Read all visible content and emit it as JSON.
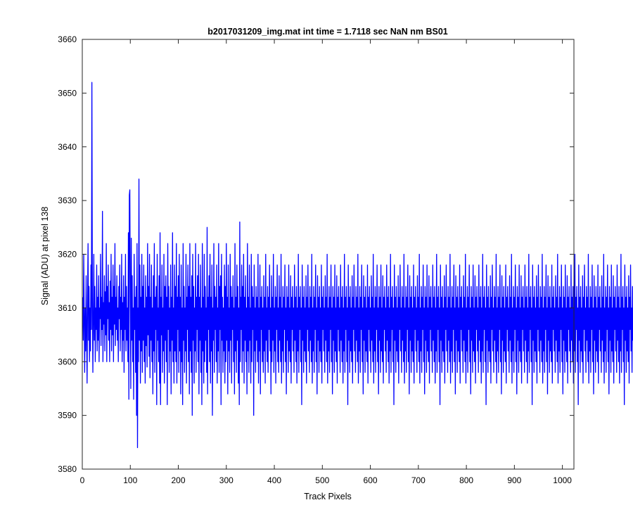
{
  "chart_data": {
    "type": "line",
    "title": "b2017031209_img.mat int time = 1.7118 sec  NaN nm BS01",
    "xlabel": "Track Pixels",
    "ylabel": "Signal (ADU) at pixel 138",
    "xlim": [
      0,
      1024
    ],
    "ylim": [
      3580,
      3660
    ],
    "xticks": [
      0,
      100,
      200,
      300,
      400,
      500,
      600,
      700,
      800,
      900,
      1000
    ],
    "yticks": [
      3580,
      3590,
      3600,
      3610,
      3620,
      3630,
      3640,
      3650,
      3660
    ],
    "grid": false,
    "legend": "none",
    "series_color": "#0000ff",
    "series": [
      {
        "x_start": 1,
        "x_step": 1,
        "values": [
          3612,
          3604,
          3620,
          3608,
          3598,
          3610,
          3602,
          3616,
          3606,
          3596,
          3612,
          3622,
          3604,
          3614,
          3600,
          3610,
          3602,
          3618,
          3606,
          3652,
          3612,
          3598,
          3608,
          3620,
          3604,
          3614,
          3600,
          3610,
          3606,
          3618,
          3602,
          3612,
          3604,
          3616,
          3600,
          3610,
          3608,
          3620,
          3603,
          3612,
          3606,
          3628,
          3600,
          3611,
          3607,
          3616,
          3602,
          3613,
          3605,
          3622,
          3600,
          3614,
          3608,
          3618,
          3604,
          3611,
          3600,
          3615,
          3606,
          3620,
          3602,
          3612,
          3605,
          3618,
          3600,
          3614,
          3607,
          3622,
          3603,
          3612,
          3606,
          3616,
          3604,
          3610,
          3600,
          3614,
          3608,
          3618,
          3602,
          3612,
          3606,
          3620,
          3600,
          3611,
          3604,
          3616,
          3598,
          3612,
          3606,
          3620,
          3602,
          3614,
          3604,
          3610,
          3600,
          3624,
          3593,
          3631,
          3632,
          3612,
          3595,
          3623,
          3604,
          3616,
          3600,
          3610,
          3593,
          3620,
          3606,
          3612,
          3598,
          3614,
          3590,
          3622,
          3584,
          3610,
          3600,
          3634,
          3604,
          3618,
          3596,
          3612,
          3602,
          3620,
          3598,
          3614,
          3604,
          3618,
          3600,
          3610,
          3596,
          3616,
          3603,
          3612,
          3599,
          3622,
          3605,
          3614,
          3601,
          3620,
          3597,
          3612,
          3604,
          3618,
          3600,
          3610,
          3594,
          3616,
          3602,
          3622,
          3598,
          3612,
          3606,
          3614,
          3592,
          3620,
          3604,
          3610,
          3600,
          3616,
          3596,
          3624,
          3592,
          3612,
          3605,
          3618,
          3598,
          3610,
          3602,
          3620,
          3596,
          3614,
          3604,
          3616,
          3600,
          3612,
          3592,
          3622,
          3606,
          3614,
          3598,
          3610,
          3602,
          3618,
          3594,
          3612,
          3604,
          3624,
          3600,
          3610,
          3596,
          3618,
          3602,
          3614,
          3600,
          3622,
          3596,
          3612,
          3606,
          3616,
          3598,
          3620,
          3602,
          3612,
          3594,
          3618,
          3600,
          3610,
          3592,
          3622,
          3604,
          3614,
          3598,
          3610,
          3602,
          3620,
          3596,
          3612,
          3606,
          3618,
          3600,
          3614,
          3594,
          3622,
          3602,
          3612,
          3598,
          3616,
          3590,
          3620,
          3604,
          3614,
          3596,
          3610,
          3602,
          3622,
          3598,
          3612,
          3606,
          3616,
          3600,
          3620,
          3594,
          3612,
          3604,
          3618,
          3598,
          3610,
          3592,
          3622,
          3602,
          3612,
          3596,
          3620,
          3600,
          3614,
          3604,
          3610,
          3598,
          3625,
          3594,
          3612,
          3606,
          3616,
          3600,
          3620,
          3596,
          3612,
          3602,
          3618,
          3590,
          3610,
          3604,
          3622,
          3598,
          3614,
          3606,
          3612,
          3600,
          3618,
          3596,
          3610,
          3602,
          3622,
          3598,
          3614,
          3606,
          3616,
          3592,
          3620,
          3604,
          3612,
          3598,
          3610,
          3602,
          3618,
          3596,
          3614,
          3600,
          3622,
          3604,
          3612,
          3594,
          3618,
          3602,
          3610,
          3598,
          3620,
          3604,
          3614,
          3596,
          3612,
          3606,
          3616,
          3600,
          3610,
          3594,
          3622,
          3602,
          3612,
          3598,
          3618,
          3604,
          3614,
          3596,
          3610,
          3592,
          3626,
          3600,
          3612,
          3606,
          3618,
          3598,
          3614,
          3602,
          3620,
          3596,
          3612,
          3604,
          3616,
          3600,
          3610,
          3594,
          3622,
          3602,
          3612,
          3598,
          3618,
          3604,
          3610,
          3596,
          3620,
          3600,
          3614,
          3606,
          3612,
          3590,
          3618,
          3602,
          3610,
          3598,
          3614,
          3604,
          3612,
          3600,
          3620,
          3596,
          3610,
          3602,
          3618,
          3594,
          3612,
          3606,
          3614,
          3600,
          3610,
          3598,
          3616,
          3602,
          3612,
          3596,
          3620,
          3604,
          3610,
          3600,
          3614,
          3598,
          3612,
          3606,
          3618,
          3602,
          3610,
          3594,
          3616,
          3600,
          3612,
          3604,
          3620,
          3598,
          3610,
          3602,
          3614,
          3596,
          3612,
          3606,
          3618,
          3600,
          3610,
          3598,
          3616,
          3604,
          3612,
          3600,
          3620,
          3596,
          3610,
          3602,
          3614,
          3598,
          3612,
          3606,
          3618,
          3600,
          3610,
          3594,
          3614,
          3604,
          3612,
          3598,
          3618,
          3602,
          3610,
          3600,
          3616,
          3596,
          3612,
          3606,
          3614,
          3602,
          3610,
          3598,
          3618,
          3604,
          3612,
          3600,
          3614,
          3596,
          3610,
          3602,
          3620,
          3598,
          3612,
          3606,
          3614,
          3600,
          3610,
          3592,
          3618,
          3604,
          3612,
          3598,
          3614,
          3602,
          3610,
          3600,
          3616,
          3596,
          3612,
          3606,
          3618,
          3602,
          3610,
          3598,
          3614,
          3604,
          3612,
          3600,
          3620,
          3596,
          3610,
          3602,
          3614,
          3598,
          3612,
          3606,
          3618,
          3600,
          3610,
          3594,
          3616,
          3604,
          3612,
          3598,
          3614,
          3602,
          3610,
          3600,
          3618,
          3596,
          3612,
          3606,
          3614,
          3602,
          3610,
          3598,
          3616,
          3604,
          3612,
          3600,
          3620,
          3596,
          3610,
          3602,
          3614,
          3598,
          3612,
          3606,
          3618,
          3600,
          3610,
          3594,
          3614,
          3604,
          3612,
          3598,
          3618,
          3602,
          3610,
          3600,
          3616,
          3596,
          3612,
          3606,
          3614,
          3602,
          3610,
          3598,
          3618,
          3604,
          3612,
          3600,
          3614,
          3596,
          3610,
          3602,
          3620,
          3598,
          3612,
          3606,
          3614,
          3600,
          3610,
          3592,
          3618,
          3604,
          3612,
          3598,
          3614,
          3602,
          3610,
          3600,
          3616,
          3596,
          3612,
          3606,
          3618,
          3602,
          3610,
          3598,
          3614,
          3604,
          3612,
          3600,
          3620,
          3596,
          3610,
          3602,
          3614,
          3598,
          3612,
          3606,
          3618,
          3600,
          3610,
          3594,
          3616,
          3604,
          3612,
          3598,
          3614,
          3602,
          3610,
          3600,
          3618,
          3596,
          3612,
          3606,
          3614,
          3602,
          3610,
          3598,
          3616,
          3604,
          3612,
          3600,
          3620,
          3596,
          3610,
          3602,
          3614,
          3598,
          3612,
          3606,
          3618,
          3600,
          3610,
          3594,
          3614,
          3604,
          3612,
          3598,
          3618,
          3602,
          3610,
          3600,
          3616,
          3596,
          3612,
          3606,
          3614,
          3602,
          3610,
          3598,
          3618,
          3604,
          3612,
          3600,
          3614,
          3596,
          3610,
          3602,
          3620,
          3598,
          3612,
          3606,
          3614,
          3600,
          3610,
          3592,
          3618,
          3604,
          3612,
          3598,
          3614,
          3602,
          3610,
          3600,
          3616,
          3596,
          3612,
          3606,
          3618,
          3602,
          3610,
          3598,
          3614,
          3604,
          3612,
          3600,
          3620,
          3596,
          3610,
          3602,
          3614,
          3598,
          3612,
          3606,
          3618,
          3600,
          3610,
          3594,
          3616,
          3604,
          3612,
          3598,
          3614,
          3602,
          3610,
          3600,
          3618,
          3596,
          3612,
          3606,
          3614,
          3602,
          3610,
          3598,
          3616,
          3604,
          3612,
          3600,
          3620,
          3596,
          3610,
          3602,
          3614,
          3598,
          3612,
          3606,
          3618,
          3600,
          3610,
          3594,
          3614,
          3604,
          3612,
          3598,
          3618,
          3602,
          3610,
          3600,
          3616,
          3596,
          3612,
          3606,
          3614,
          3602,
          3610,
          3598,
          3618,
          3604,
          3612,
          3600,
          3614,
          3596,
          3610,
          3602,
          3620,
          3598,
          3612,
          3606,
          3614,
          3600,
          3610,
          3592,
          3618,
          3604,
          3612,
          3598,
          3614,
          3602,
          3610,
          3600,
          3616,
          3596,
          3612,
          3606,
          3618,
          3602,
          3610,
          3598,
          3614,
          3604,
          3612,
          3600,
          3620,
          3596,
          3610,
          3602,
          3614,
          3598,
          3612,
          3606,
          3618,
          3600,
          3610,
          3594,
          3616,
          3604,
          3612,
          3598,
          3614,
          3602,
          3610,
          3600,
          3618,
          3596,
          3612,
          3606,
          3614,
          3602,
          3610,
          3598,
          3616,
          3604,
          3612,
          3600,
          3620,
          3596,
          3610,
          3602,
          3614,
          3598,
          3612,
          3606,
          3618,
          3600,
          3610,
          3594,
          3614,
          3604,
          3612,
          3598,
          3618,
          3602,
          3610,
          3600,
          3616,
          3596,
          3612,
          3606,
          3614,
          3602,
          3610,
          3598,
          3618,
          3604,
          3612,
          3600,
          3614,
          3596,
          3610,
          3602,
          3620,
          3598,
          3612,
          3606,
          3614,
          3600,
          3610,
          3592,
          3618,
          3604,
          3612,
          3598,
          3614,
          3602,
          3610,
          3600,
          3616,
          3596,
          3612,
          3606,
          3618,
          3602,
          3610,
          3598,
          3614,
          3604,
          3612,
          3600,
          3620,
          3596,
          3610,
          3602,
          3614,
          3598,
          3612,
          3606,
          3618,
          3600,
          3610,
          3594,
          3616,
          3604,
          3612,
          3598,
          3614,
          3602,
          3610,
          3600,
          3618,
          3596,
          3612,
          3606,
          3614,
          3602,
          3610,
          3598,
          3616,
          3604,
          3612,
          3600,
          3620,
          3596,
          3610,
          3602,
          3614,
          3598,
          3612,
          3606,
          3618,
          3600,
          3610,
          3594,
          3614,
          3604,
          3612,
          3598,
          3618,
          3602,
          3610,
          3600,
          3616,
          3596,
          3612,
          3606,
          3614,
          3602,
          3610,
          3598,
          3618,
          3604,
          3612,
          3600,
          3614,
          3596,
          3610,
          3602,
          3620,
          3598,
          3612,
          3606,
          3614,
          3600,
          3610,
          3592,
          3618,
          3604,
          3612,
          3598,
          3614,
          3602,
          3610,
          3600,
          3616,
          3596,
          3612,
          3606,
          3618,
          3602,
          3610,
          3598,
          3614,
          3604,
          3612,
          3600,
          3620,
          3596,
          3610,
          3602,
          3614,
          3598,
          3612,
          3606,
          3618,
          3600,
          3610,
          3594,
          3616,
          3604,
          3612,
          3598,
          3614,
          3602,
          3610,
          3600,
          3618,
          3596,
          3612,
          3606,
          3614,
          3602,
          3610,
          3598,
          3616,
          3604,
          3612,
          3600,
          3620,
          3596,
          3610,
          3602,
          3614,
          3598,
          3612,
          3606,
          3618,
          3600,
          3610,
          3594,
          3614,
          3604,
          3612,
          3598,
          3618,
          3602,
          3610,
          3600,
          3616,
          3596,
          3612,
          3606,
          3614,
          3602,
          3610,
          3598,
          3618,
          3604,
          3612,
          3600,
          3614,
          3596,
          3610,
          3602,
          3620,
          3598,
          3612,
          3606,
          3614,
          3600,
          3610,
          3592,
          3618,
          3604,
          3612,
          3598,
          3614,
          3602,
          3610,
          3600,
          3616,
          3596,
          3612,
          3606,
          3618,
          3602,
          3610,
          3598,
          3614,
          3604,
          3612,
          3600,
          3620,
          3596,
          3610,
          3602,
          3614,
          3598,
          3612,
          3606,
          3618,
          3600,
          3610,
          3594,
          3616,
          3604,
          3612,
          3598,
          3614,
          3602,
          3610,
          3600,
          3618,
          3596,
          3612,
          3606,
          3614,
          3602,
          3610,
          3598,
          3616,
          3604,
          3612,
          3600,
          3620,
          3596,
          3610,
          3602,
          3614,
          3598,
          3612,
          3606,
          3618,
          3600,
          3610,
          3594,
          3614,
          3604,
          3612,
          3598,
          3618,
          3602,
          3610,
          3600,
          3616,
          3596,
          3612,
          3606,
          3614,
          3602,
          3610,
          3598,
          3618,
          3604,
          3612,
          3600,
          3614,
          3596,
          3610,
          3602,
          3620,
          3598,
          3612,
          3606,
          3614,
          3600,
          3610,
          3592,
          3618,
          3604,
          3612,
          3598,
          3614,
          3602,
          3610,
          3600,
          3616,
          3596,
          3612,
          3606,
          3618,
          3602,
          3610,
          3598,
          3614,
          3604,
          3612,
          3600,
          3620,
          3596,
          3610,
          3602,
          3614,
          3598,
          3612
        ]
      }
    ]
  }
}
